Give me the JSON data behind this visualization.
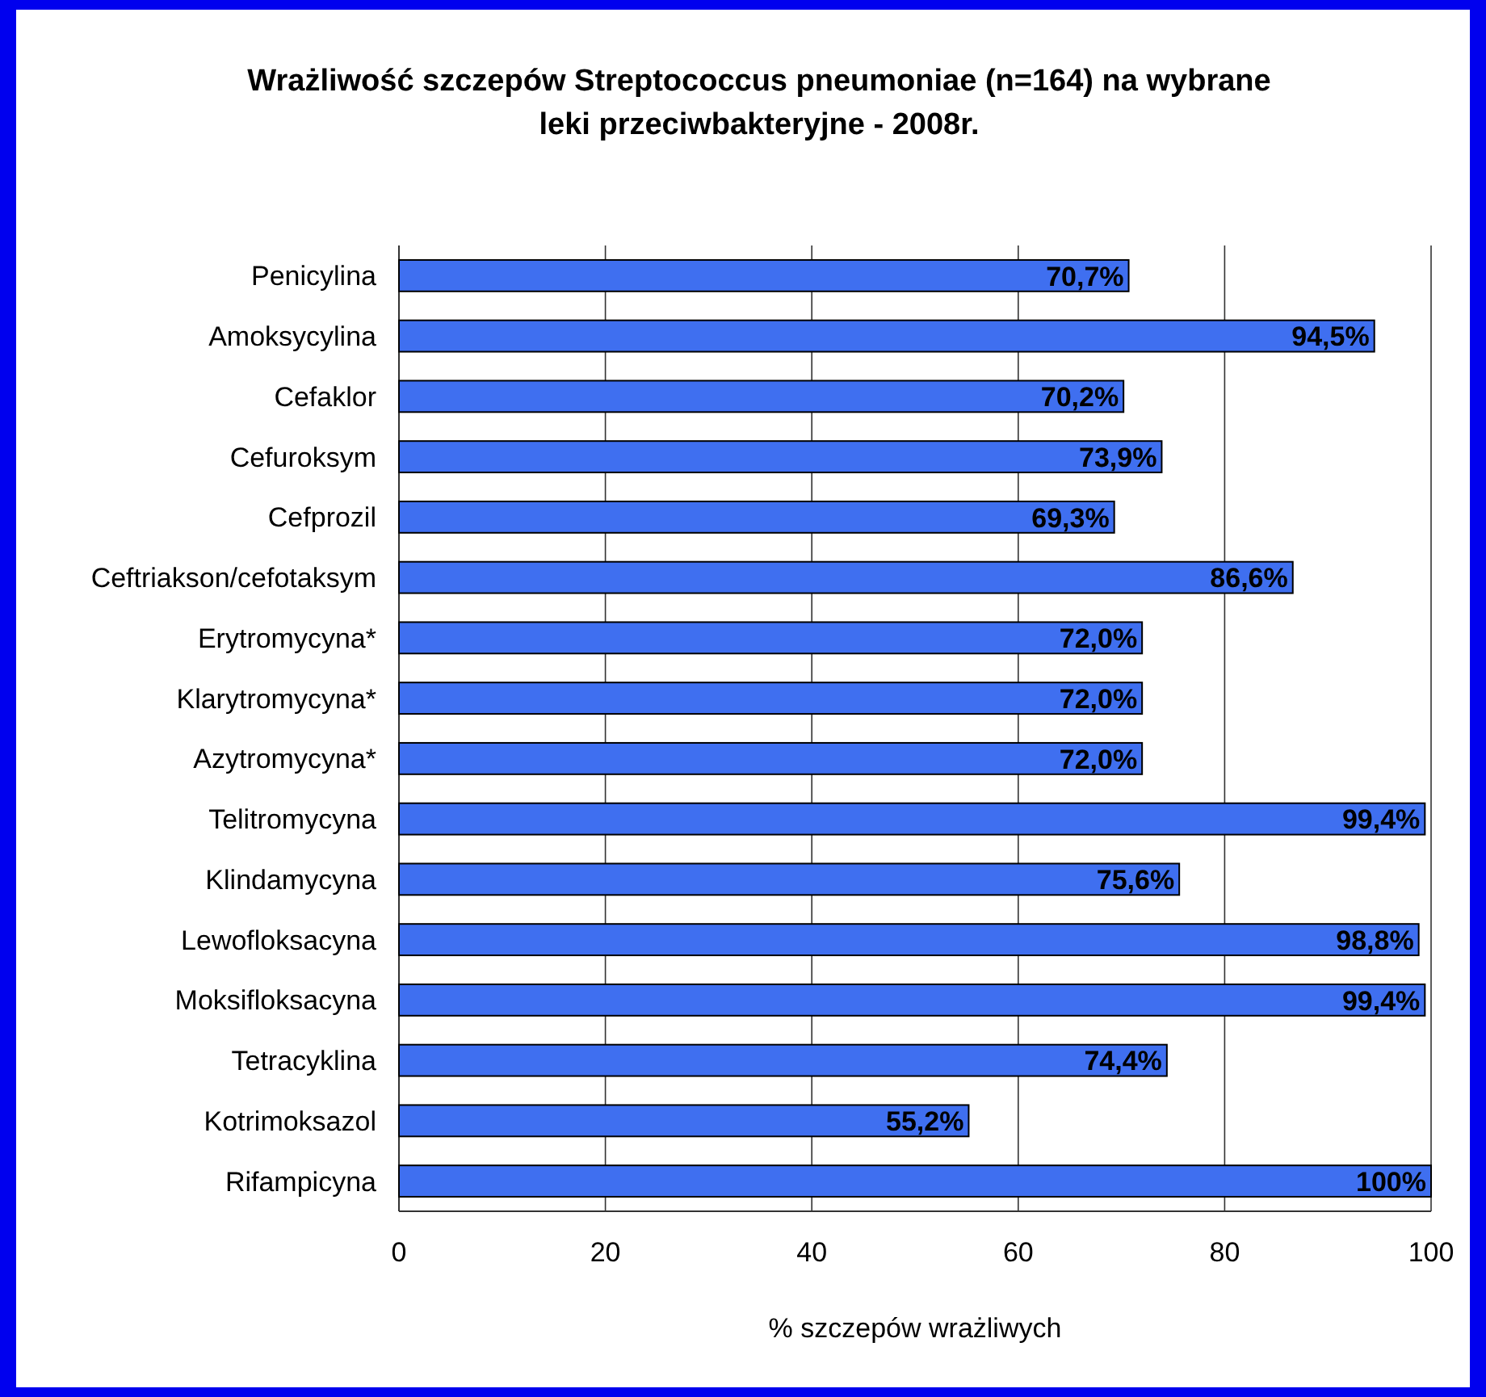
{
  "chart_data": {
    "type": "bar",
    "orientation": "horizontal",
    "title": "Wrażliwość szczepów Streptococcus pneumoniae  (n=164) na wybrane leki przeciwbakteryjne - 2008r.",
    "xlabel": "% szczepów wrażliwych",
    "categories": [
      "Penicylina",
      "Amoksycylina",
      "Cefaklor",
      "Cefuroksym",
      "Cefprozil",
      "Ceftriakson/cefotaksym",
      "Erytromycyna*",
      "Klarytromycyna*",
      "Azytromycyna*",
      "Telitromycyna",
      "Klindamycyna",
      "Lewofloksacyna",
      "Moksifloksacyna",
      "Tetracyklina",
      "Kotrimoksazol",
      "Rifampicyna"
    ],
    "values": [
      70.7,
      94.5,
      70.2,
      73.9,
      69.3,
      86.6,
      72.0,
      72.0,
      72.0,
      99.4,
      75.6,
      98.8,
      99.4,
      74.4,
      55.2,
      100
    ],
    "value_labels": [
      "70,7%",
      "94,5%",
      "70,2%",
      "73,9%",
      "69,3%",
      "86,6%",
      "72,0%",
      "72,0%",
      "72,0%",
      "99,4%",
      "75,6%",
      "98,8%",
      "99,4%",
      "74,4%",
      "55,2%",
      "100%"
    ],
    "color": "#3f6ff0",
    "xlim": [
      0,
      100
    ],
    "xticks": [
      0,
      20,
      40,
      60,
      80,
      100
    ],
    "grid": "x"
  }
}
